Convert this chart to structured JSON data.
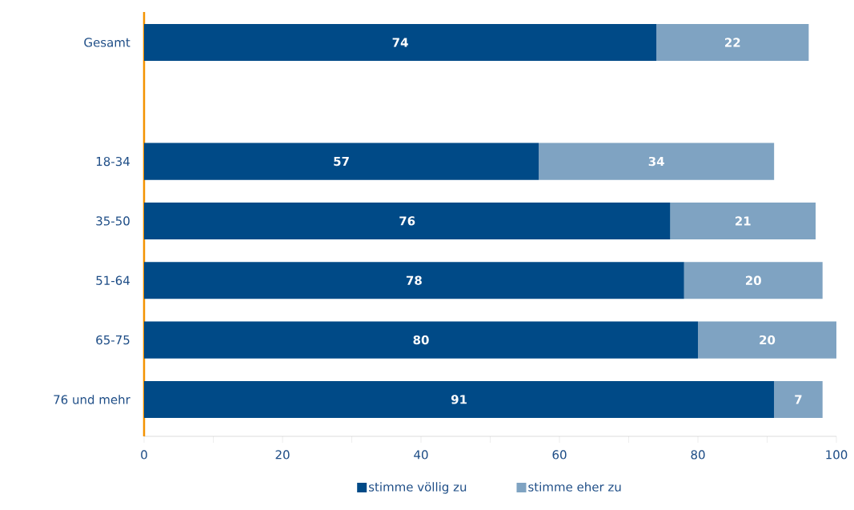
{
  "chart_data": {
    "type": "bar",
    "orientation": "horizontal",
    "stacked": true,
    "categories": [
      "Gesamt",
      null,
      "18-34",
      "35-50",
      "51-64",
      "65-75",
      "76 und mehr"
    ],
    "series": [
      {
        "name": "stimme völlig zu",
        "color": "#004a87",
        "values": [
          74,
          null,
          57,
          76,
          78,
          80,
          91
        ]
      },
      {
        "name": "stimme eher zu",
        "color": "#7fa3c2",
        "values": [
          22,
          null,
          34,
          21,
          20,
          20,
          7
        ]
      }
    ],
    "xlim": [
      0,
      100
    ],
    "xticks": [
      0,
      {
        "value": 10,
        "label": null
      },
      20,
      {
        "value": 30,
        "label": null
      },
      40,
      {
        "value": 50,
        "label": null
      },
      60,
      {
        "value": 70,
        "label": null
      },
      80,
      {
        "value": 90,
        "label": null
      },
      100
    ],
    "data_labels": true,
    "grid": false,
    "legend": "bottom"
  }
}
